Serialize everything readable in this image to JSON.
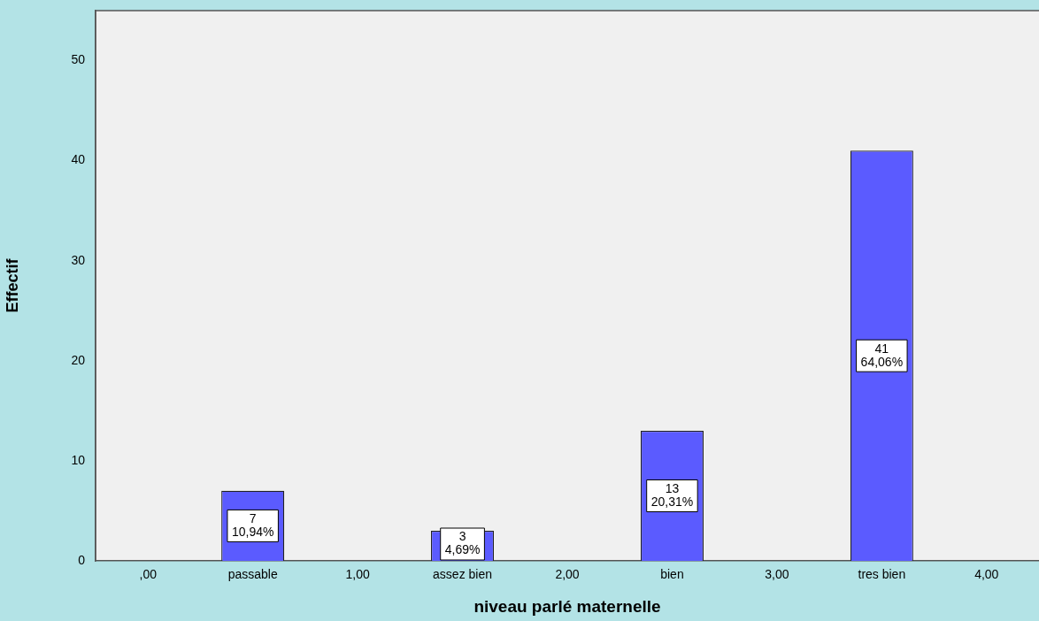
{
  "chart_data": {
    "type": "bar",
    "xlabel": "niveau parlé maternelle",
    "ylabel": "Effectif",
    "categories": [
      ",00",
      "passable",
      "1,00",
      "assez bien",
      "2,00",
      "bien",
      "3,00",
      "tres bien",
      "4,00"
    ],
    "values": [
      0,
      7,
      0,
      3,
      0,
      13,
      0,
      41,
      0
    ],
    "value_labels": [
      null,
      "7\n10,94%",
      null,
      "3\n4,69%",
      null,
      "13\n20,31%",
      null,
      "41\n64,06%",
      null
    ],
    "color": "#5b5bff",
    "ylim": [
      0,
      55
    ],
    "yticks": [
      0,
      10,
      20,
      30,
      40,
      50
    ],
    "legend": false
  }
}
